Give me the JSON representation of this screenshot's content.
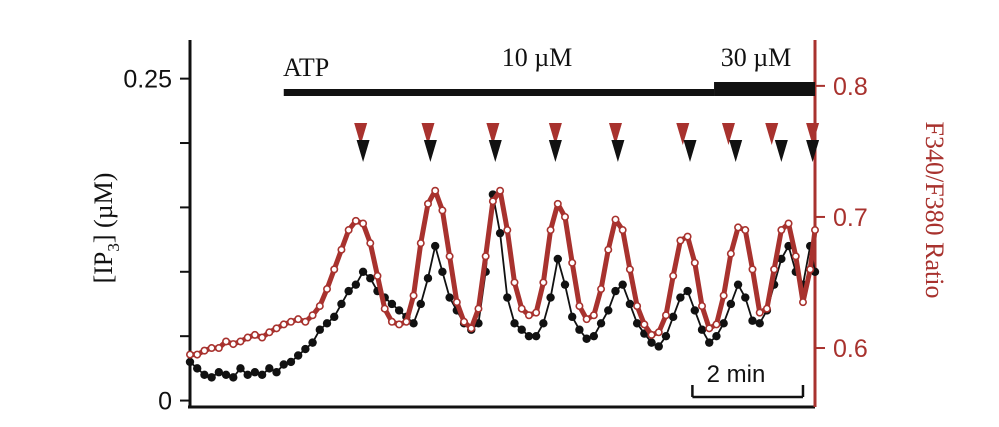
{
  "chart_data": {
    "type": "line",
    "title": "",
    "xlabel": "",
    "x_range": [
      0,
      13.0
    ],
    "x_unit": "min",
    "colors": {
      "ip3": "#111111",
      "ratio": "#a8322e",
      "axis_left": "#111111",
      "axis_right": "#a8322e"
    },
    "left_axis": {
      "label_main": "[IP",
      "label_sub": "3",
      "label_rest": "] (µM)",
      "range": [
        -0.005,
        0.28
      ],
      "ticks": [
        0,
        0.05,
        0.1,
        0.15,
        0.2,
        0.25
      ],
      "tick_labels": [
        "0",
        "",
        "",
        "",
        "",
        "0.25"
      ]
    },
    "right_axis": {
      "label": "F340/F380 Ratio",
      "range": [
        0.555,
        0.835
      ],
      "ticks": [
        0.6,
        0.7,
        0.8
      ],
      "tick_labels": [
        "0.6",
        "0.7",
        "0.8"
      ]
    },
    "scale_bar": {
      "label": "2 min",
      "x_start": 10.45,
      "x_end": 12.75
    },
    "stimulus": {
      "prefix": "ATP",
      "segments": [
        {
          "label": "10 µM",
          "x_start": 1.95,
          "x_end": 10.9,
          "level": "low"
        },
        {
          "label": "30 µM",
          "x_start": 10.9,
          "x_end": 13.0,
          "level": "high"
        }
      ]
    },
    "peak_markers": {
      "calcium_x": [
        3.55,
        4.95,
        6.3,
        7.6,
        8.85,
        10.25,
        11.2,
        12.1,
        12.95
      ],
      "ip3_x": [
        3.6,
        5.0,
        6.35,
        7.6,
        8.9,
        10.4,
        11.35,
        12.3,
        12.95
      ]
    },
    "series": [
      {
        "name": "IP3",
        "axis": "left",
        "x": [
          0.0,
          0.15,
          0.3,
          0.45,
          0.6,
          0.75,
          0.9,
          1.05,
          1.2,
          1.35,
          1.5,
          1.65,
          1.8,
          1.95,
          2.1,
          2.25,
          2.4,
          2.55,
          2.7,
          2.85,
          3.0,
          3.15,
          3.3,
          3.45,
          3.6,
          3.75,
          3.9,
          4.05,
          4.2,
          4.35,
          4.5,
          4.65,
          4.8,
          4.95,
          5.1,
          5.25,
          5.4,
          5.55,
          5.7,
          5.85,
          6.0,
          6.15,
          6.3,
          6.45,
          6.6,
          6.75,
          6.9,
          7.05,
          7.2,
          7.35,
          7.5,
          7.65,
          7.8,
          7.95,
          8.1,
          8.25,
          8.4,
          8.55,
          8.7,
          8.85,
          9.0,
          9.15,
          9.3,
          9.45,
          9.6,
          9.75,
          9.9,
          10.05,
          10.2,
          10.35,
          10.5,
          10.65,
          10.8,
          10.95,
          11.1,
          11.25,
          11.4,
          11.55,
          11.7,
          11.85,
          12.0,
          12.15,
          12.3,
          12.45,
          12.6,
          12.75,
          12.9,
          13.0
        ],
        "values": [
          0.03,
          0.025,
          0.02,
          0.018,
          0.022,
          0.02,
          0.018,
          0.025,
          0.02,
          0.022,
          0.02,
          0.025,
          0.022,
          0.028,
          0.03,
          0.035,
          0.04,
          0.045,
          0.055,
          0.06,
          0.065,
          0.075,
          0.085,
          0.09,
          0.1,
          0.095,
          0.085,
          0.08,
          0.075,
          0.07,
          0.065,
          0.06,
          0.075,
          0.095,
          0.12,
          0.1,
          0.08,
          0.07,
          0.06,
          0.055,
          0.06,
          0.1,
          0.16,
          0.13,
          0.08,
          0.06,
          0.055,
          0.05,
          0.05,
          0.06,
          0.08,
          0.11,
          0.09,
          0.065,
          0.055,
          0.048,
          0.05,
          0.06,
          0.07,
          0.085,
          0.09,
          0.075,
          0.06,
          0.052,
          0.045,
          0.042,
          0.05,
          0.065,
          0.08,
          0.085,
          0.07,
          0.055,
          0.045,
          0.05,
          0.06,
          0.075,
          0.09,
          0.08,
          0.062,
          0.06,
          0.07,
          0.09,
          0.11,
          0.12,
          0.1,
          0.09,
          0.12,
          0.1
        ]
      },
      {
        "name": "F340/F380 Ratio",
        "axis": "right",
        "x": [
          0.0,
          0.15,
          0.3,
          0.45,
          0.6,
          0.75,
          0.9,
          1.05,
          1.2,
          1.35,
          1.5,
          1.65,
          1.8,
          1.95,
          2.1,
          2.25,
          2.4,
          2.55,
          2.7,
          2.85,
          3.0,
          3.15,
          3.3,
          3.45,
          3.6,
          3.75,
          3.9,
          4.05,
          4.2,
          4.35,
          4.5,
          4.65,
          4.8,
          4.95,
          5.1,
          5.25,
          5.4,
          5.55,
          5.7,
          5.85,
          6.0,
          6.15,
          6.3,
          6.45,
          6.6,
          6.75,
          6.9,
          7.05,
          7.2,
          7.35,
          7.5,
          7.65,
          7.8,
          7.95,
          8.1,
          8.25,
          8.4,
          8.55,
          8.7,
          8.85,
          9.0,
          9.15,
          9.3,
          9.45,
          9.6,
          9.75,
          9.9,
          10.05,
          10.2,
          10.35,
          10.5,
          10.65,
          10.8,
          10.95,
          11.1,
          11.25,
          11.4,
          11.55,
          11.7,
          11.85,
          12.0,
          12.15,
          12.3,
          12.45,
          12.6,
          12.75,
          12.9,
          13.0
        ],
        "values": [
          0.595,
          0.595,
          0.598,
          0.6,
          0.6,
          0.605,
          0.603,
          0.605,
          0.608,
          0.61,
          0.608,
          0.612,
          0.615,
          0.618,
          0.62,
          0.622,
          0.62,
          0.625,
          0.632,
          0.645,
          0.66,
          0.675,
          0.69,
          0.697,
          0.695,
          0.68,
          0.655,
          0.63,
          0.62,
          0.618,
          0.62,
          0.64,
          0.68,
          0.71,
          0.72,
          0.705,
          0.67,
          0.635,
          0.62,
          0.615,
          0.63,
          0.67,
          0.712,
          0.72,
          0.69,
          0.65,
          0.63,
          0.625,
          0.627,
          0.65,
          0.69,
          0.71,
          0.7,
          0.665,
          0.632,
          0.622,
          0.625,
          0.645,
          0.675,
          0.698,
          0.69,
          0.66,
          0.632,
          0.618,
          0.61,
          0.612,
          0.625,
          0.655,
          0.682,
          0.685,
          0.665,
          0.632,
          0.615,
          0.618,
          0.64,
          0.672,
          0.692,
          0.69,
          0.66,
          0.627,
          0.63,
          0.66,
          0.69,
          0.695,
          0.67,
          0.635,
          0.66,
          0.69
        ]
      }
    ]
  }
}
